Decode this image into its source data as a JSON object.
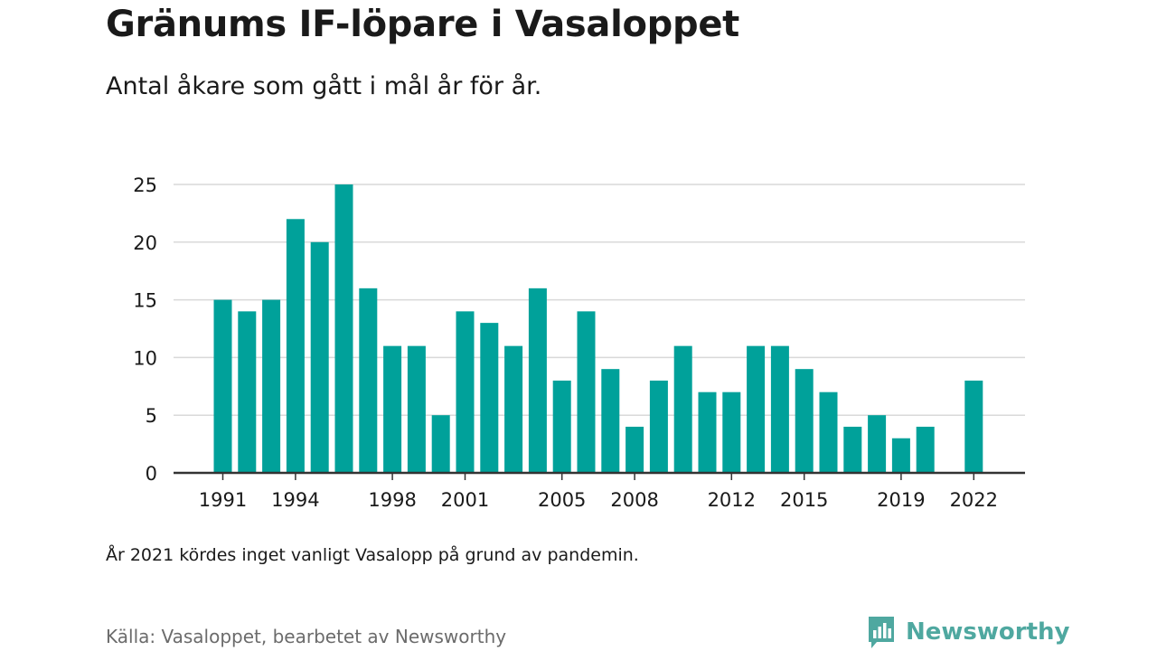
{
  "title": "Gränums IF-löpare i Vasaloppet",
  "subtitle": "Antal åkare som gått i mål år för år.",
  "note": "År 2021 kördes inget vanligt Vasalopp på grund av pandemin.",
  "source": "Källa: Vasaloppet, bearbetet av Newsworthy",
  "brand": {
    "name": "Newsworthy",
    "icon": "chart-speech-bubble-icon",
    "color": "#4fa8a0"
  },
  "colors": {
    "bar": "#00a19a",
    "grid": "#d9d9d9",
    "axis": "#333333",
    "text": "#1a1a1a"
  },
  "chart_data": {
    "type": "bar",
    "x": [
      1991,
      1992,
      1993,
      1994,
      1995,
      1996,
      1997,
      1998,
      1999,
      2000,
      2001,
      2002,
      2003,
      2004,
      2005,
      2006,
      2007,
      2008,
      2009,
      2010,
      2011,
      2012,
      2013,
      2014,
      2015,
      2016,
      2017,
      2018,
      2019,
      2020,
      2021,
      2022
    ],
    "values": [
      15,
      14,
      15,
      22,
      20,
      25,
      16,
      11,
      11,
      5,
      14,
      13,
      11,
      16,
      8,
      14,
      9,
      4,
      8,
      11,
      7,
      7,
      11,
      11,
      9,
      7,
      4,
      5,
      3,
      4,
      null,
      8
    ],
    "x_tick_labels": [
      "1991",
      "1994",
      "1998",
      "2001",
      "2005",
      "2008",
      "2012",
      "2015",
      "2019",
      "2022"
    ],
    "y_ticks": [
      "0",
      "5",
      "10",
      "15",
      "20",
      "25"
    ],
    "ylim": [
      0,
      25
    ],
    "grid": true,
    "xlabel": "",
    "ylabel": ""
  }
}
